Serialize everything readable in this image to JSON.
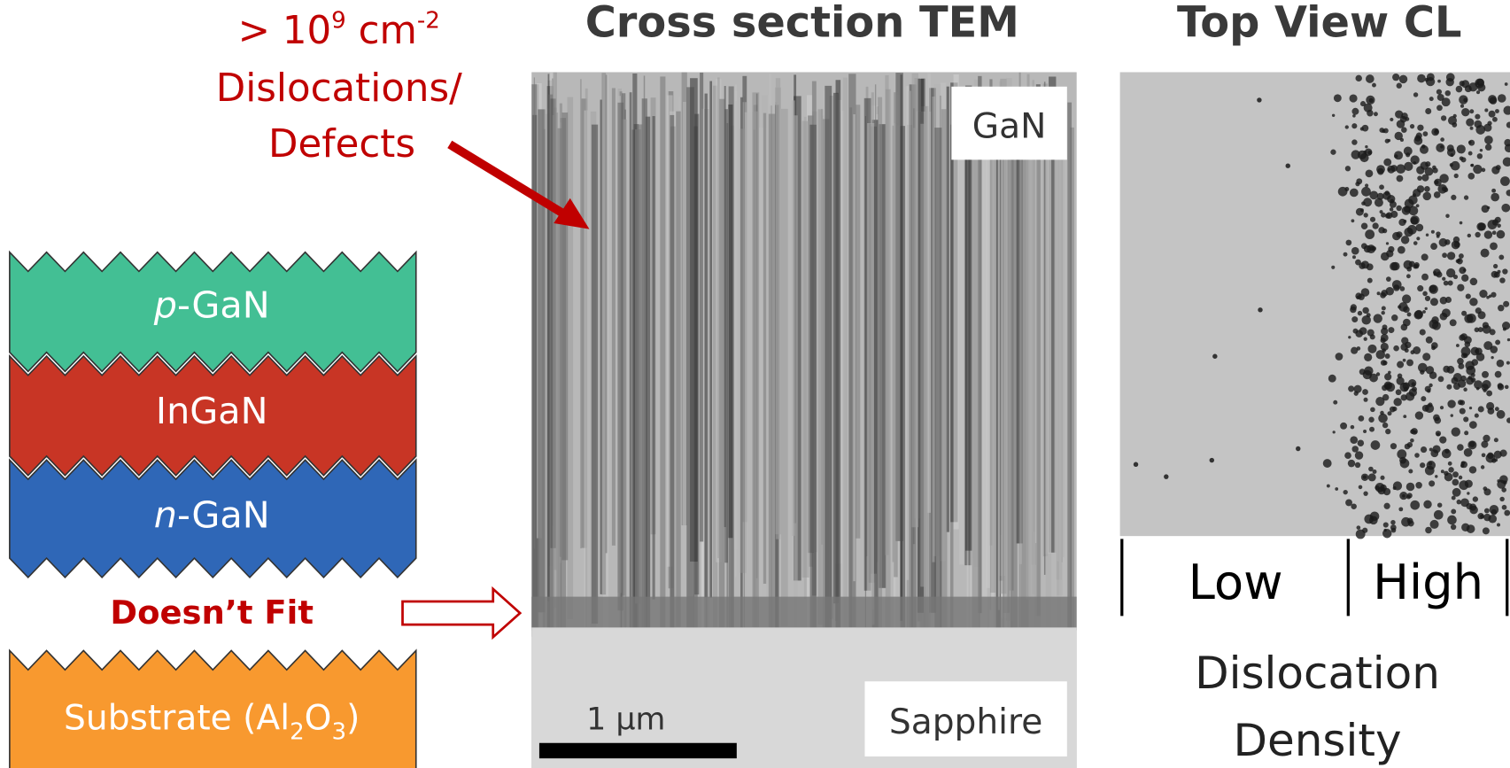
{
  "annotation": {
    "density_prefix": "> 10",
    "density_exp": "9",
    "density_unit": " cm",
    "density_unit_exp": "-2",
    "line2": "Dislocations/",
    "line3": "Defects"
  },
  "layers": [
    {
      "prefix": "p",
      "label": "-GaN"
    },
    {
      "label": "InGaN"
    },
    {
      "prefix": "n",
      "label": "-GaN"
    }
  ],
  "mismatch_label": "Doesn’t Fit",
  "substrate": {
    "text": "Substrate (Al",
    "sub1": "2",
    "mid": "O",
    "sub2": "3",
    "end": ")"
  },
  "tem": {
    "title": "Cross section TEM",
    "top_label": "GaN",
    "bottom_label": "Sapphire",
    "scale_bar": "1 µm"
  },
  "cl": {
    "title": "Top View CL",
    "low": "Low",
    "high": "High",
    "caption_line1": "Dislocation",
    "caption_line2": "Density"
  }
}
